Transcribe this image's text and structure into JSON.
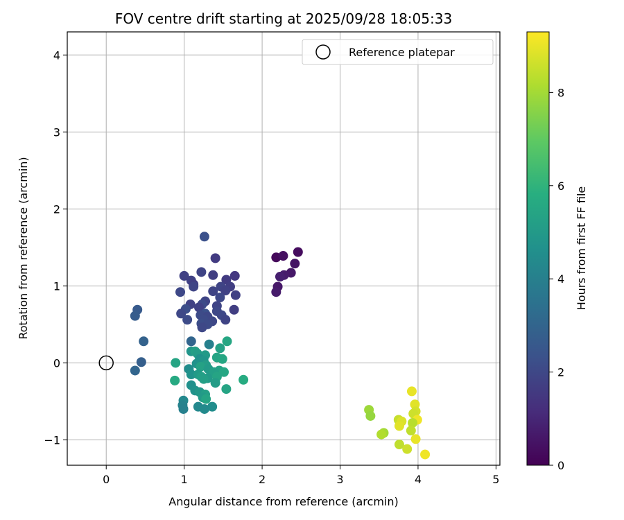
{
  "chart_data": {
    "type": "scatter",
    "title": "FOV centre drift starting at 2025/09/28 18:05:33",
    "xlabel": "Angular distance from reference (arcmin)",
    "ylabel": "Rotation from reference (arcmin)",
    "xlim": [
      -0.5,
      5.05
    ],
    "ylim": [
      -1.33,
      4.3
    ],
    "xticks": [
      "0",
      "1",
      "2",
      "3",
      "4",
      "5"
    ],
    "xtick_values": [
      0,
      1,
      2,
      3,
      4,
      5
    ],
    "yticks": [
      "−1",
      "0",
      "1",
      "2",
      "3",
      "4"
    ],
    "ytick_values": [
      -1,
      0,
      1,
      2,
      3,
      4
    ],
    "grid": true,
    "legend": {
      "position": "top-right",
      "entries": [
        {
          "label": "Reference platepar",
          "marker": "hollow-circle"
        }
      ]
    },
    "reference_point": {
      "x": 0,
      "y": 0
    },
    "colorbar": {
      "label": "Hours from first FF file",
      "colormap": "viridis",
      "range": [
        0,
        9.3
      ],
      "ticks": [
        "0",
        "2",
        "4",
        "6",
        "8"
      ],
      "tick_values": [
        0,
        2,
        4,
        6,
        8
      ]
    },
    "series": [
      {
        "name": "FOV centre",
        "points": [
          {
            "x": 2.18,
            "y": 1.37,
            "c": 0.2
          },
          {
            "x": 2.27,
            "y": 1.39,
            "c": 0.4
          },
          {
            "x": 2.46,
            "y": 1.44,
            "c": 0.3
          },
          {
            "x": 2.42,
            "y": 1.29,
            "c": 0.5
          },
          {
            "x": 2.37,
            "y": 1.17,
            "c": 0.6
          },
          {
            "x": 2.28,
            "y": 1.14,
            "c": 0.7
          },
          {
            "x": 2.23,
            "y": 1.12,
            "c": 0.8
          },
          {
            "x": 2.2,
            "y": 0.99,
            "c": 0.6
          },
          {
            "x": 2.18,
            "y": 0.92,
            "c": 0.7
          },
          {
            "x": 1.26,
            "y": 1.64,
            "c": 2.3
          },
          {
            "x": 1.4,
            "y": 1.36,
            "c": 1.6
          },
          {
            "x": 1.22,
            "y": 1.18,
            "c": 1.9
          },
          {
            "x": 1.0,
            "y": 1.13,
            "c": 1.8
          },
          {
            "x": 1.37,
            "y": 1.14,
            "c": 1.7
          },
          {
            "x": 1.65,
            "y": 1.13,
            "c": 1.5
          },
          {
            "x": 1.09,
            "y": 1.07,
            "c": 1.8
          },
          {
            "x": 1.12,
            "y": 1.02,
            "c": 1.7
          },
          {
            "x": 1.12,
            "y": 0.99,
            "c": 1.9
          },
          {
            "x": 1.54,
            "y": 1.08,
            "c": 1.6
          },
          {
            "x": 1.47,
            "y": 0.99,
            "c": 1.9
          },
          {
            "x": 1.59,
            "y": 0.99,
            "c": 1.7
          },
          {
            "x": 1.53,
            "y": 0.94,
            "c": 1.8
          },
          {
            "x": 1.37,
            "y": 0.93,
            "c": 1.9
          },
          {
            "x": 0.95,
            "y": 0.92,
            "c": 2.0
          },
          {
            "x": 1.66,
            "y": 0.88,
            "c": 1.8
          },
          {
            "x": 1.46,
            "y": 0.85,
            "c": 2.0
          },
          {
            "x": 1.27,
            "y": 0.8,
            "c": 1.9
          },
          {
            "x": 1.23,
            "y": 0.76,
            "c": 2.1
          },
          {
            "x": 1.08,
            "y": 0.76,
            "c": 1.8
          },
          {
            "x": 1.42,
            "y": 0.74,
            "c": 1.9
          },
          {
            "x": 1.19,
            "y": 0.72,
            "c": 1.8
          },
          {
            "x": 1.02,
            "y": 0.7,
            "c": 2.2
          },
          {
            "x": 1.64,
            "y": 0.69,
            "c": 1.7
          },
          {
            "x": 1.42,
            "y": 0.67,
            "c": 2.0
          },
          {
            "x": 0.96,
            "y": 0.64,
            "c": 2.0
          },
          {
            "x": 1.27,
            "y": 0.64,
            "c": 2.3
          },
          {
            "x": 1.21,
            "y": 0.62,
            "c": 2.1
          },
          {
            "x": 1.48,
            "y": 0.62,
            "c": 2.0
          },
          {
            "x": 1.3,
            "y": 0.6,
            "c": 2.0
          },
          {
            "x": 1.04,
            "y": 0.56,
            "c": 2.1
          },
          {
            "x": 1.25,
            "y": 0.56,
            "c": 2.1
          },
          {
            "x": 1.53,
            "y": 0.56,
            "c": 1.9
          },
          {
            "x": 1.36,
            "y": 0.54,
            "c": 2.0
          },
          {
            "x": 1.22,
            "y": 0.51,
            "c": 2.2
          },
          {
            "x": 1.3,
            "y": 0.5,
            "c": 2.1
          },
          {
            "x": 1.23,
            "y": 0.46,
            "c": 2.0
          },
          {
            "x": 0.4,
            "y": 0.69,
            "c": 2.6
          },
          {
            "x": 0.37,
            "y": 0.61,
            "c": 2.7
          },
          {
            "x": 0.48,
            "y": 0.28,
            "c": 2.9
          },
          {
            "x": 1.09,
            "y": 0.28,
            "c": 3.0
          },
          {
            "x": 0.45,
            "y": 0.01,
            "c": 2.8
          },
          {
            "x": 0.37,
            "y": -0.1,
            "c": 3.0
          },
          {
            "x": 1.55,
            "y": 0.28,
            "c": 5.5
          },
          {
            "x": 1.32,
            "y": 0.24,
            "c": 4.0
          },
          {
            "x": 1.46,
            "y": 0.19,
            "c": 5.3
          },
          {
            "x": 1.09,
            "y": 0.15,
            "c": 4.8
          },
          {
            "x": 1.14,
            "y": 0.15,
            "c": 5.2
          },
          {
            "x": 1.17,
            "y": 0.12,
            "c": 5.1
          },
          {
            "x": 1.27,
            "y": 0.1,
            "c": 5.0
          },
          {
            "x": 1.42,
            "y": 0.07,
            "c": 5.4
          },
          {
            "x": 1.2,
            "y": 0.05,
            "c": 4.6
          },
          {
            "x": 1.49,
            "y": 0.05,
            "c": 5.5
          },
          {
            "x": 1.25,
            "y": 0.03,
            "c": 4.8
          },
          {
            "x": 0.89,
            "y": 0.0,
            "c": 5.4
          },
          {
            "x": 1.16,
            "y": -0.01,
            "c": 4.7
          },
          {
            "x": 1.28,
            "y": -0.03,
            "c": 5.1
          },
          {
            "x": 1.21,
            "y": -0.05,
            "c": 5.3
          },
          {
            "x": 1.06,
            "y": -0.08,
            "c": 4.5
          },
          {
            "x": 1.31,
            "y": -0.08,
            "c": 5.0
          },
          {
            "x": 1.45,
            "y": -0.1,
            "c": 5.3
          },
          {
            "x": 1.38,
            "y": -0.12,
            "c": 5.2
          },
          {
            "x": 1.51,
            "y": -0.12,
            "c": 5.5
          },
          {
            "x": 1.09,
            "y": -0.15,
            "c": 4.7
          },
          {
            "x": 1.18,
            "y": -0.15,
            "c": 5.0
          },
          {
            "x": 1.22,
            "y": -0.18,
            "c": 5.2
          },
          {
            "x": 1.42,
            "y": -0.18,
            "c": 5.4
          },
          {
            "x": 1.3,
            "y": -0.2,
            "c": 5.0
          },
          {
            "x": 1.25,
            "y": -0.21,
            "c": 5.2
          },
          {
            "x": 1.76,
            "y": -0.22,
            "c": 5.7
          },
          {
            "x": 0.88,
            "y": -0.23,
            "c": 5.6
          },
          {
            "x": 1.4,
            "y": -0.26,
            "c": 5.1
          },
          {
            "x": 1.09,
            "y": -0.29,
            "c": 4.6
          },
          {
            "x": 1.54,
            "y": -0.34,
            "c": 5.4
          },
          {
            "x": 1.14,
            "y": -0.36,
            "c": 4.7
          },
          {
            "x": 1.2,
            "y": -0.38,
            "c": 4.9
          },
          {
            "x": 1.27,
            "y": -0.41,
            "c": 5.2
          },
          {
            "x": 1.24,
            "y": -0.45,
            "c": 5.0
          },
          {
            "x": 1.28,
            "y": -0.47,
            "c": 5.4
          },
          {
            "x": 0.99,
            "y": -0.49,
            "c": 4.3
          },
          {
            "x": 0.98,
            "y": -0.55,
            "c": 4.1
          },
          {
            "x": 1.18,
            "y": -0.57,
            "c": 4.3
          },
          {
            "x": 1.36,
            "y": -0.57,
            "c": 4.5
          },
          {
            "x": 0.99,
            "y": -0.6,
            "c": 4.0
          },
          {
            "x": 1.26,
            "y": -0.6,
            "c": 4.4
          },
          {
            "x": 3.92,
            "y": -0.37,
            "c": 9.0
          },
          {
            "x": 3.96,
            "y": -0.54,
            "c": 8.9
          },
          {
            "x": 3.37,
            "y": -0.61,
            "c": 7.9
          },
          {
            "x": 3.97,
            "y": -0.63,
            "c": 8.7
          },
          {
            "x": 3.94,
            "y": -0.66,
            "c": 8.6
          },
          {
            "x": 3.39,
            "y": -0.69,
            "c": 7.8
          },
          {
            "x": 3.75,
            "y": -0.74,
            "c": 8.5
          },
          {
            "x": 3.99,
            "y": -0.74,
            "c": 9.1
          },
          {
            "x": 3.79,
            "y": -0.76,
            "c": 8.8
          },
          {
            "x": 3.93,
            "y": -0.78,
            "c": 8.3
          },
          {
            "x": 3.76,
            "y": -0.82,
            "c": 8.9
          },
          {
            "x": 3.91,
            "y": -0.88,
            "c": 8.4
          },
          {
            "x": 3.56,
            "y": -0.91,
            "c": 8.0
          },
          {
            "x": 3.53,
            "y": -0.93,
            "c": 8.2
          },
          {
            "x": 3.97,
            "y": -0.99,
            "c": 9.0
          },
          {
            "x": 3.76,
            "y": -1.06,
            "c": 8.4
          },
          {
            "x": 3.86,
            "y": -1.12,
            "c": 8.6
          },
          {
            "x": 4.09,
            "y": -1.19,
            "c": 9.1
          }
        ]
      }
    ]
  }
}
